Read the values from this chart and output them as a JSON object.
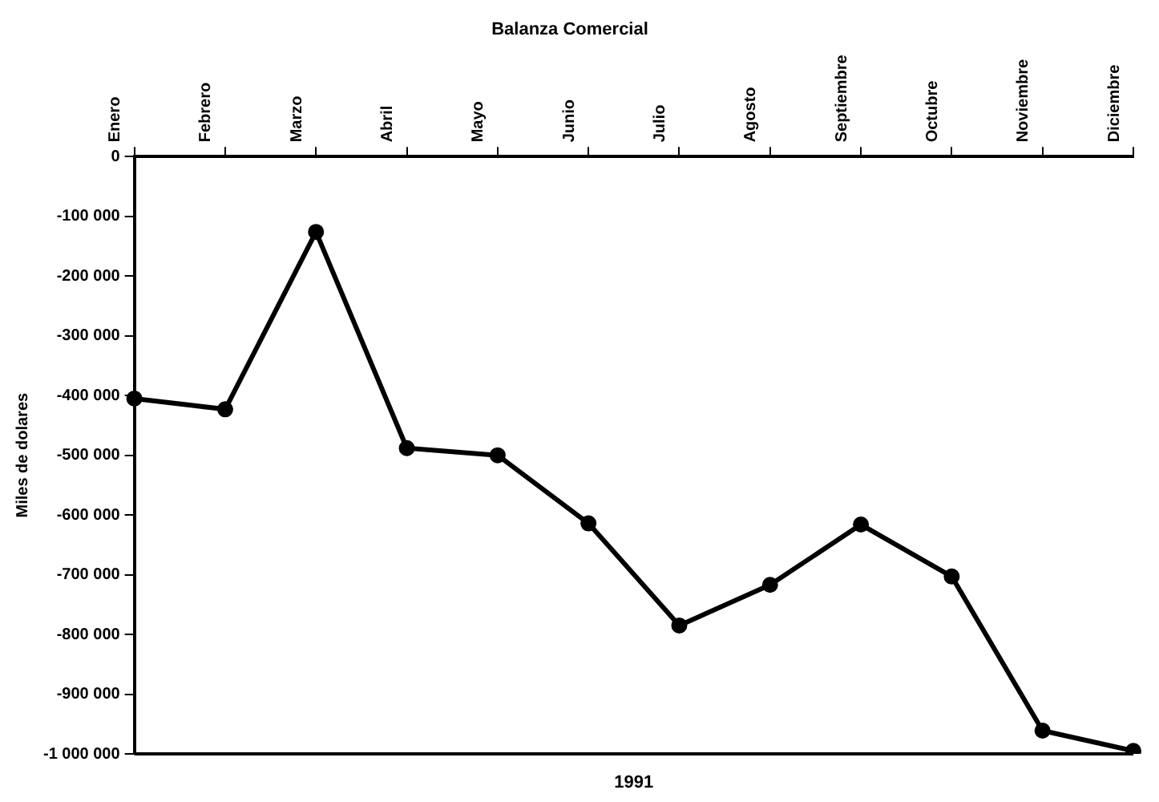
{
  "chart_data": {
    "type": "line",
    "title": "Balanza Comercial",
    "xlabel": "1991",
    "ylabel": "Miles de dolares",
    "categories": [
      "Enero",
      "Febrero",
      "Marzo",
      "Abril",
      "Mayo",
      "Junio",
      "Julio",
      "Agosto",
      "Septiembre",
      "Octubre",
      "Noviembre",
      "Diciembre"
    ],
    "series": [
      {
        "color": "#000000",
        "values": [
          -405000,
          -423000,
          -126000,
          -488000,
          -500000,
          -614000,
          -785000,
          -717000,
          -616000,
          -703000,
          -961000,
          -995000
        ]
      }
    ],
    "ylim": [
      -1000000,
      0
    ],
    "yticks": [
      {
        "value": -1000000,
        "label": "-1 000 000"
      },
      {
        "value": -900000,
        "label": "-900 000"
      },
      {
        "value": -800000,
        "label": "-800 000"
      },
      {
        "value": -700000,
        "label": "-700 000"
      },
      {
        "value": -600000,
        "label": "-600 000"
      },
      {
        "value": -500000,
        "label": "-500 000"
      },
      {
        "value": -400000,
        "label": "-400 000"
      },
      {
        "value": -300000,
        "label": "-300 000"
      },
      {
        "value": -200000,
        "label": "-200 000"
      },
      {
        "value": -100000,
        "label": "-100 000"
      },
      0
    ],
    "grid": false,
    "legend": false,
    "marker": "circle",
    "line_style": "solid"
  }
}
